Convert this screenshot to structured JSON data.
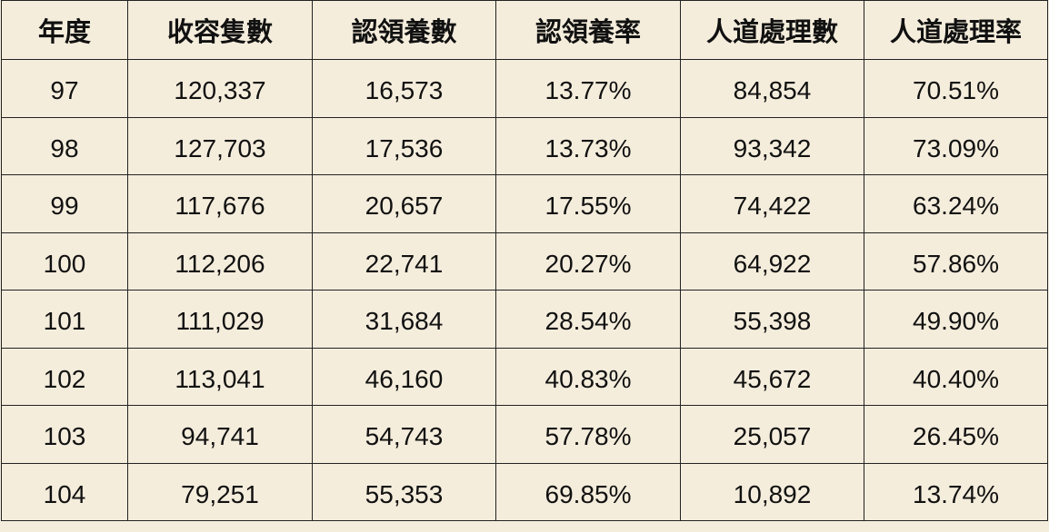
{
  "table": {
    "headers": [
      "年度",
      "收容隻數",
      "認領養數",
      "認領養率",
      "人道處理數",
      "人道處理率"
    ],
    "rows": [
      [
        "97",
        "120,337",
        "16,573",
        "13.77%",
        "84,854",
        "70.51%"
      ],
      [
        "98",
        "127,703",
        "17,536",
        "13.73%",
        "93,342",
        "73.09%"
      ],
      [
        "99",
        "117,676",
        "20,657",
        "17.55%",
        "74,422",
        "63.24%"
      ],
      [
        "100",
        "112,206",
        "22,741",
        "20.27%",
        "64,922",
        "57.86%"
      ],
      [
        "101",
        "111,029",
        "31,684",
        "28.54%",
        "55,398",
        "49.90%"
      ],
      [
        "102",
        "113,041",
        "46,160",
        "40.83%",
        "45,672",
        "40.40%"
      ],
      [
        "103",
        "94,741",
        "54,743",
        "57.78%",
        "25,057",
        "26.45%"
      ],
      [
        "104",
        "79,251",
        "55,353",
        "69.85%",
        "10,892",
        "13.74%"
      ]
    ]
  },
  "colors": {
    "background": "#f5eddc",
    "border": "#222222",
    "text": "#111111"
  }
}
